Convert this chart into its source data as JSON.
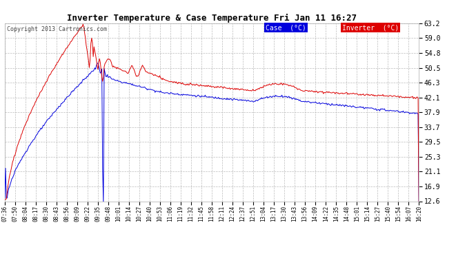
{
  "title": "Inverter Temperature & Case Temperature Fri Jan 11 16:27",
  "copyright": "Copyright 2013 Cartronics.com",
  "bg_color": "#ffffff",
  "plot_bg_color": "#ffffff",
  "grid_color": "#bbbbbb",
  "case_color": "#0000dd",
  "inverter_color": "#dd0000",
  "ylim": [
    12.6,
    63.2
  ],
  "yticks": [
    12.6,
    16.9,
    21.1,
    25.3,
    29.5,
    33.7,
    37.9,
    42.1,
    46.3,
    50.5,
    54.8,
    59.0,
    63.2
  ],
  "legend_case_label": "Case  (°C)",
  "legend_inverter_label": "Inverter  (°C)",
  "xtick_labels": [
    "07:36",
    "07:50",
    "08:04",
    "08:17",
    "08:30",
    "08:43",
    "08:56",
    "09:09",
    "09:22",
    "09:35",
    "09:48",
    "10:01",
    "10:14",
    "10:27",
    "10:40",
    "10:53",
    "11:06",
    "11:19",
    "11:32",
    "11:45",
    "11:58",
    "12:11",
    "12:24",
    "12:37",
    "12:51",
    "13:04",
    "13:17",
    "13:30",
    "13:43",
    "13:56",
    "14:09",
    "14:22",
    "14:35",
    "14:48",
    "15:01",
    "15:14",
    "15:27",
    "15:40",
    "15:54",
    "16:07",
    "16:20"
  ]
}
